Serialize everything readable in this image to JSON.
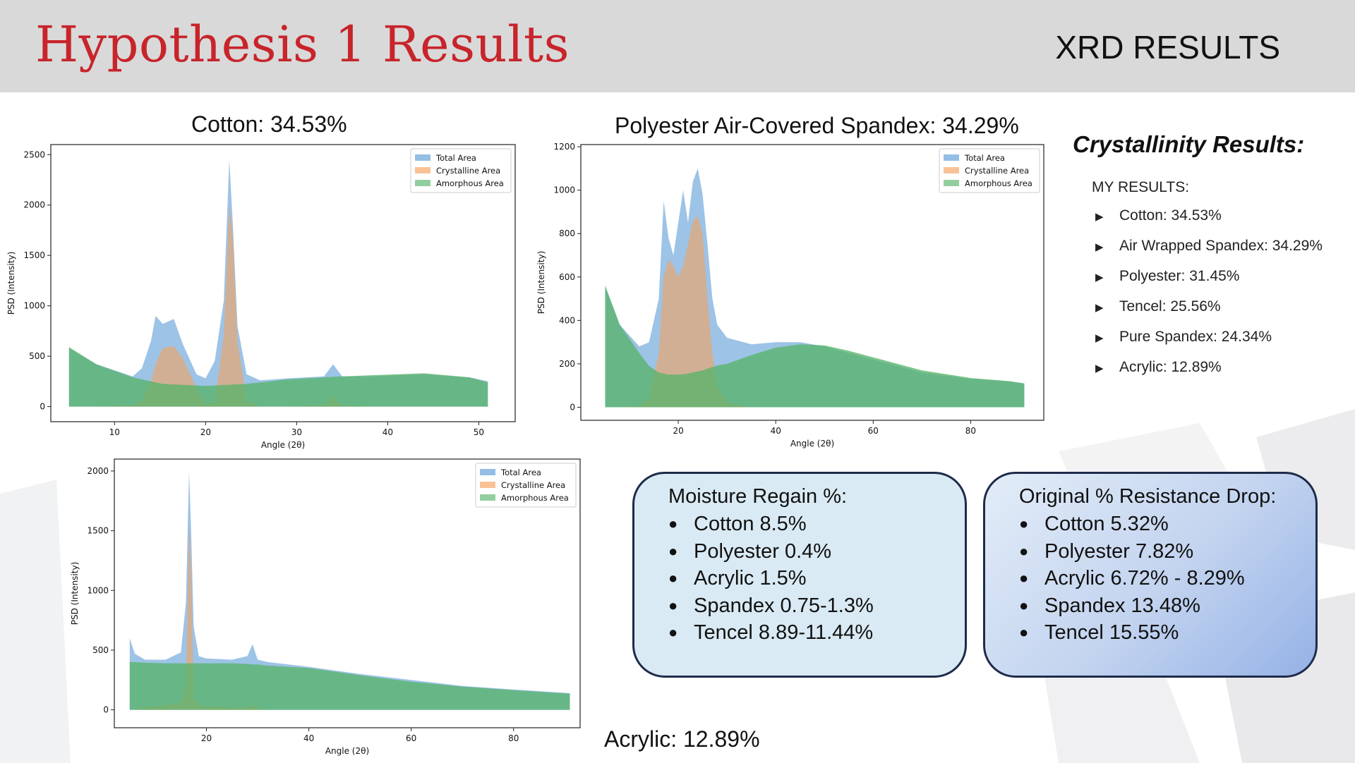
{
  "header": {
    "title": "Hypothesis 1 Results",
    "section": "XRD RESULTS"
  },
  "colors": {
    "title_red": "#c8242b",
    "header_gray": "#d9d9d9",
    "total_area": "#5b9bd5",
    "crystalline_area": "#f4a15d",
    "amorphous_area": "#59b36a"
  },
  "charts": {
    "cotton": {
      "title": "Cotton: 34.53%"
    },
    "pacs": {
      "title": "Polyester Air-Covered Spandex: 34.29%"
    },
    "acrylic": {
      "title": "Acrylic: 12.89%"
    }
  },
  "chart_data": [
    {
      "type": "area",
      "title": "Cotton: 34.53%",
      "xlabel": "Angle (2θ)",
      "ylabel": "PSD (Intensity)",
      "xlim": [
        3,
        54
      ],
      "ylim": [
        -150,
        2600
      ],
      "xticks": [
        10,
        20,
        30,
        40,
        50
      ],
      "yticks": [
        0,
        500,
        1000,
        1500,
        2000,
        2500
      ],
      "legend": {
        "position": "top-right",
        "entries": [
          "Total Area",
          "Crystalline Area",
          "Amorphous Area"
        ]
      },
      "x": [
        5,
        8,
        12,
        13,
        14,
        14.5,
        15.3,
        16.5,
        17.5,
        19,
        20,
        21,
        22,
        22.6,
        23,
        23.5,
        24.5,
        26,
        29,
        33,
        34,
        35,
        38,
        44,
        49,
        51
      ],
      "series": [
        {
          "name": "Total Area",
          "values": [
            580,
            420,
            300,
            380,
            650,
            900,
            820,
            870,
            620,
            320,
            280,
            450,
            1050,
            2450,
            1800,
            800,
            320,
            260,
            280,
            300,
            420,
            300,
            300,
            320,
            290,
            250
          ]
        },
        {
          "name": "Crystalline Area",
          "values": [
            0,
            0,
            10,
            60,
            250,
            420,
            580,
            600,
            480,
            180,
            20,
            40,
            700,
            2000,
            1700,
            650,
            60,
            0,
            0,
            10,
            100,
            10,
            0,
            0,
            0,
            0
          ]
        },
        {
          "name": "Amorphous Area",
          "values": [
            590,
            420,
            290,
            270,
            250,
            240,
            225,
            220,
            215,
            210,
            205,
            210,
            215,
            215,
            220,
            220,
            225,
            240,
            270,
            290,
            295,
            300,
            310,
            330,
            290,
            240
          ]
        }
      ]
    },
    {
      "type": "area",
      "title": "Polyester Air-Covered Spandex: 34.29%",
      "xlabel": "Angle (2θ)",
      "ylabel": "PSD (Intensity)",
      "xlim": [
        0,
        95
      ],
      "ylim": [
        -60,
        1210
      ],
      "xticks": [
        20,
        40,
        60,
        80
      ],
      "yticks": [
        0,
        200,
        400,
        600,
        800,
        1000,
        1200
      ],
      "legend": {
        "position": "top-right",
        "entries": [
          "Total Area",
          "Crystalline Area",
          "Amorphous Area"
        ]
      },
      "x": [
        5,
        8,
        12,
        14,
        16,
        17,
        18,
        19,
        20,
        21,
        22,
        23,
        24,
        25,
        26,
        27,
        28,
        30,
        35,
        40,
        45,
        50,
        55,
        60,
        70,
        80,
        88,
        91
      ],
      "series": [
        {
          "name": "Total Area",
          "values": [
            560,
            380,
            280,
            300,
            500,
            950,
            780,
            700,
            850,
            1000,
            850,
            1040,
            1100,
            980,
            750,
            500,
            380,
            320,
            290,
            300,
            300,
            280,
            250,
            220,
            160,
            130,
            120,
            110
          ]
        },
        {
          "name": "Crystalline Area",
          "values": [
            0,
            0,
            5,
            40,
            250,
            600,
            680,
            650,
            600,
            650,
            750,
            860,
            880,
            800,
            500,
            250,
            100,
            20,
            0,
            0,
            0,
            0,
            0,
            0,
            0,
            0,
            0,
            0
          ]
        },
        {
          "name": "Amorphous Area",
          "values": [
            560,
            380,
            250,
            190,
            160,
            155,
            150,
            150,
            150,
            152,
            155,
            160,
            165,
            170,
            178,
            185,
            192,
            200,
            240,
            275,
            290,
            285,
            260,
            230,
            170,
            135,
            120,
            110
          ]
        }
      ]
    },
    {
      "type": "area",
      "title": "Acrylic: 12.89%",
      "xlabel": "Angle (2θ)",
      "ylabel": "PSD (Intensity)",
      "xlim": [
        2,
        93
      ],
      "ylim": [
        -150,
        2100
      ],
      "xticks": [
        20,
        40,
        60,
        80
      ],
      "yticks": [
        0,
        500,
        1000,
        1500,
        2000
      ],
      "legend": {
        "position": "top-right",
        "entries": [
          "Total Area",
          "Crystalline Area",
          "Amorphous Area"
        ]
      },
      "x": [
        5,
        6,
        8,
        12,
        15,
        16,
        16.6,
        17,
        17.5,
        18.5,
        20,
        25,
        28,
        29,
        30,
        32,
        40,
        50,
        60,
        70,
        80,
        91
      ],
      "series": [
        {
          "name": "Total Area",
          "values": [
            600,
            470,
            420,
            420,
            480,
            900,
            2000,
            1500,
            700,
            450,
            430,
            420,
            450,
            550,
            420,
            400,
            360,
            300,
            250,
            200,
            170,
            140
          ]
        },
        {
          "name": "Crystalline Area",
          "values": [
            0,
            0,
            20,
            40,
            60,
            200,
            1550,
            1200,
            100,
            40,
            30,
            20,
            20,
            40,
            10,
            0,
            0,
            0,
            0,
            0,
            0,
            0
          ]
        },
        {
          "name": "Amorphous Area",
          "values": [
            400,
            400,
            395,
            390,
            390,
            390,
            390,
            390,
            390,
            390,
            390,
            390,
            385,
            380,
            380,
            370,
            350,
            290,
            235,
            195,
            165,
            135
          ]
        }
      ]
    }
  ],
  "crystallinity": {
    "heading": "Crystallinity Results:",
    "subheading": "MY RESULTS:",
    "items": [
      "Cotton: 34.53%",
      "Air Wrapped Spandex: 34.29%",
      "Polyester: 31.45%",
      "Tencel: 25.56%",
      "Pure Spandex: 24.34%",
      "Acrylic: 12.89%"
    ]
  },
  "moisture": {
    "title": "Moisture Regain %:",
    "items": [
      "Cotton 8.5%",
      "Polyester 0.4%",
      "Acrylic 1.5%",
      "Spandex 0.75-1.3%",
      "Tencel 8.89-11.44%"
    ]
  },
  "resistance": {
    "title": "Original % Resistance Drop:",
    "items": [
      "Cotton 5.32%",
      "Polyester 7.82%",
      "Acrylic 6.72% - 8.29%",
      "Spandex 13.48%",
      "Tencel 15.55%"
    ]
  }
}
